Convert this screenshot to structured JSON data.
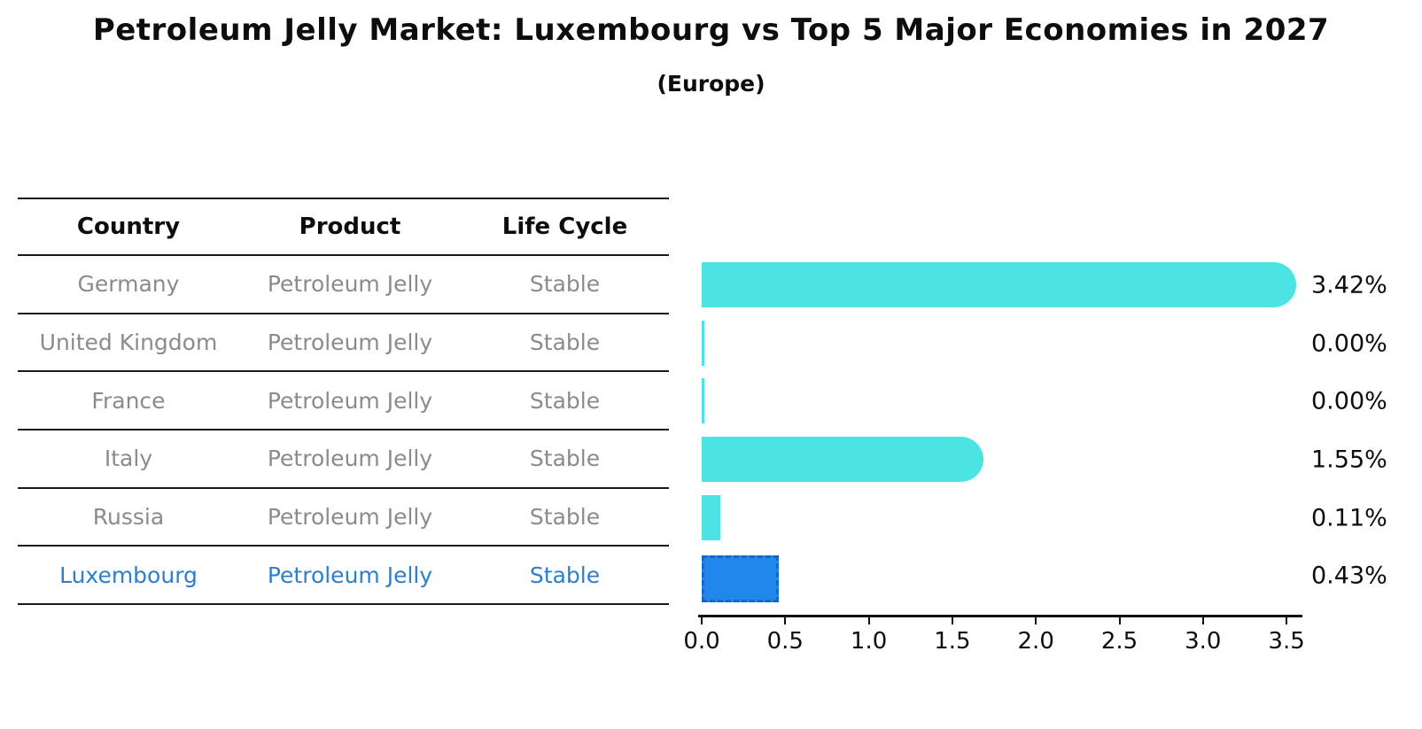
{
  "title": "Petroleum Jelly Market: Luxembourg vs Top 5 Major Economies in 2027",
  "subtitle": "(Europe)",
  "table": {
    "headers": [
      "Country",
      "Product",
      "Life Cycle"
    ],
    "rows": [
      {
        "country": "Germany",
        "product": "Petroleum Jelly",
        "life_cycle": "Stable"
      },
      {
        "country": "United Kingdom",
        "product": "Petroleum Jelly",
        "life_cycle": "Stable"
      },
      {
        "country": "France",
        "product": "Petroleum Jelly",
        "life_cycle": "Stable"
      },
      {
        "country": "Italy",
        "product": "Petroleum Jelly",
        "life_cycle": "Stable"
      },
      {
        "country": "Russia",
        "product": "Petroleum Jelly",
        "life_cycle": "Stable"
      },
      {
        "country": "Luxembourg",
        "product": "Petroleum Jelly",
        "life_cycle": "Stable"
      }
    ],
    "highlight_row": "Luxembourg"
  },
  "chart_data": {
    "type": "bar",
    "orientation": "horizontal",
    "title": "Petroleum Jelly Market: Luxembourg vs Top 5 Major Economies in 2027 (Europe)",
    "categories": [
      "Germany",
      "United Kingdom",
      "France",
      "Italy",
      "Russia",
      "Luxembourg"
    ],
    "values": [
      3.42,
      0.0,
      0.0,
      1.55,
      0.11,
      0.43
    ],
    "value_labels": [
      "3.42%",
      "0.00%",
      "0.00%",
      "1.55%",
      "0.11%",
      "0.43%"
    ],
    "xlabel": "",
    "ylabel": "",
    "xlim": [
      0,
      3.5
    ],
    "x_ticks": [
      "0.0",
      "0.5",
      "1.0",
      "1.5",
      "2.0",
      "2.5",
      "3.0",
      "3.5"
    ],
    "grid": "off",
    "legend": "none",
    "bar_styles": [
      "rounded",
      "sliver",
      "sliver",
      "rounded",
      "plain",
      "highlight"
    ],
    "colors": {
      "bar": "#4be4e2",
      "highlight_bar": "#2287ea",
      "highlight_border": "#1767c0",
      "axis": "#111111",
      "table_text": "#8b8b8b",
      "highlight_text": "#2a7fd0"
    }
  }
}
